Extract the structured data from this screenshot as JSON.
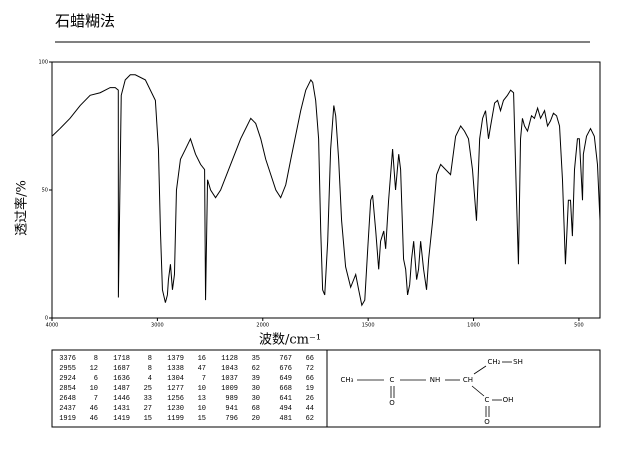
{
  "header": {
    "title": "石蜡糊法"
  },
  "chart_data": {
    "type": "line",
    "ylabel": "透过率/%",
    "xlabel": "波数/cm⁻¹",
    "xlim": [
      4000,
      400
    ],
    "xbreak": {
      "value": 2000,
      "expand": 2
    },
    "xticks": [
      4000,
      3000,
      2000,
      1500,
      1000,
      500
    ],
    "ylim": [
      0,
      100
    ],
    "yticks": [
      0,
      50,
      100
    ],
    "series": [
      {
        "color": "#000000",
        "x": [
          4000,
          3924,
          3829,
          3733,
          3638,
          3543,
          3448,
          3400,
          3371,
          3370,
          3343,
          3305,
          3257,
          3210,
          3114,
          3019,
          2990,
          2971,
          2952,
          2924,
          2905,
          2895,
          2876,
          2857,
          2838,
          2819,
          2781,
          2733,
          2686,
          2638,
          2590,
          2552,
          2543,
          2524,
          2495,
          2448,
          2400,
          2305,
          2210,
          2114,
          2067,
          2019,
          1986,
          1962,
          1938,
          1915,
          1891,
          1867,
          1820,
          1796,
          1772,
          1763,
          1749,
          1735,
          1725,
          1716,
          1706,
          1692,
          1678,
          1663,
          1654,
          1640,
          1626,
          1607,
          1583,
          1559,
          1545,
          1530,
          1516,
          1502,
          1488,
          1479,
          1464,
          1450,
          1441,
          1426,
          1417,
          1403,
          1384,
          1370,
          1355,
          1346,
          1332,
          1322,
          1313,
          1303,
          1294,
          1284,
          1270,
          1261,
          1251,
          1237,
          1223,
          1213,
          1194,
          1175,
          1156,
          1133,
          1109,
          1085,
          1061,
          1043,
          1024,
          1005,
          986,
          971,
          957,
          943,
          929,
          919,
          900,
          886,
          872,
          858,
          839,
          824,
          810,
          796,
          787,
          777,
          768,
          758,
          744,
          725,
          711,
          696,
          682,
          663,
          649,
          635,
          621,
          606,
          592,
          578,
          564,
          550,
          540,
          531,
          521,
          507,
          498,
          483,
          479,
          464,
          445,
          427,
          412,
          400
        ],
        "values": [
          71,
          74,
          78,
          83,
          87,
          88,
          90,
          90,
          89,
          8,
          87,
          93,
          95,
          95,
          93,
          85,
          66,
          34,
          11,
          6,
          9,
          15,
          21,
          11,
          17,
          50,
          62,
          66,
          70,
          64,
          60,
          58,
          7,
          54,
          50,
          47,
          50,
          60,
          70,
          78,
          76,
          70,
          62,
          56,
          50,
          47,
          52,
          62,
          81,
          89,
          93,
          92,
          85,
          70,
          34,
          11,
          9,
          30,
          66,
          83,
          79,
          62,
          38,
          20,
          12,
          17,
          11,
          5,
          7,
          27,
          46,
          48,
          34,
          19,
          30,
          34,
          27,
          46,
          66,
          50,
          64,
          58,
          23,
          19,
          9,
          13,
          23,
          30,
          15,
          19,
          30,
          19,
          11,
          23,
          38,
          56,
          60,
          58,
          56,
          71,
          75,
          73,
          70,
          58,
          38,
          70,
          78,
          81,
          70,
          75,
          84,
          85,
          81,
          85,
          87,
          89,
          88,
          46,
          21,
          70,
          78,
          75,
          73,
          79,
          78,
          82,
          78,
          81,
          75,
          77,
          80,
          79,
          75,
          54,
          21,
          46,
          46,
          32,
          58,
          70,
          70,
          46,
          64,
          71,
          74,
          71,
          60,
          38
        ]
      }
    ]
  },
  "peak_table": [
    [
      3376,
      8
    ],
    [
      2955,
      12
    ],
    [
      2924,
      6
    ],
    [
      2854,
      10
    ],
    [
      2648,
      7
    ],
    [
      2437,
      46
    ],
    [
      1919,
      46
    ],
    [
      1718,
      8
    ],
    [
      1687,
      8
    ],
    [
      1636,
      4
    ],
    [
      1487,
      25
    ],
    [
      1446,
      33
    ],
    [
      1431,
      27
    ],
    [
      1419,
      15
    ],
    [
      1379,
      16
    ],
    [
      1338,
      47
    ],
    [
      1304,
      7
    ],
    [
      1277,
      10
    ],
    [
      1256,
      13
    ],
    [
      1230,
      10
    ],
    [
      1199,
      15
    ],
    [
      1128,
      35
    ],
    [
      1043,
      62
    ],
    [
      1037,
      39
    ],
    [
      1009,
      30
    ],
    [
      989,
      30
    ],
    [
      941,
      68
    ],
    [
      796,
      20
    ],
    [
      767,
      66
    ],
    [
      676,
      72
    ],
    [
      649,
      66
    ],
    [
      668,
      19
    ],
    [
      641,
      26
    ],
    [
      494,
      44
    ],
    [
      481,
      62
    ]
  ],
  "structure": {
    "labels": [
      "CH₃",
      "C",
      "O",
      "NH",
      "CH",
      "CH₂",
      "SH",
      "C",
      "OH",
      "O"
    ]
  }
}
